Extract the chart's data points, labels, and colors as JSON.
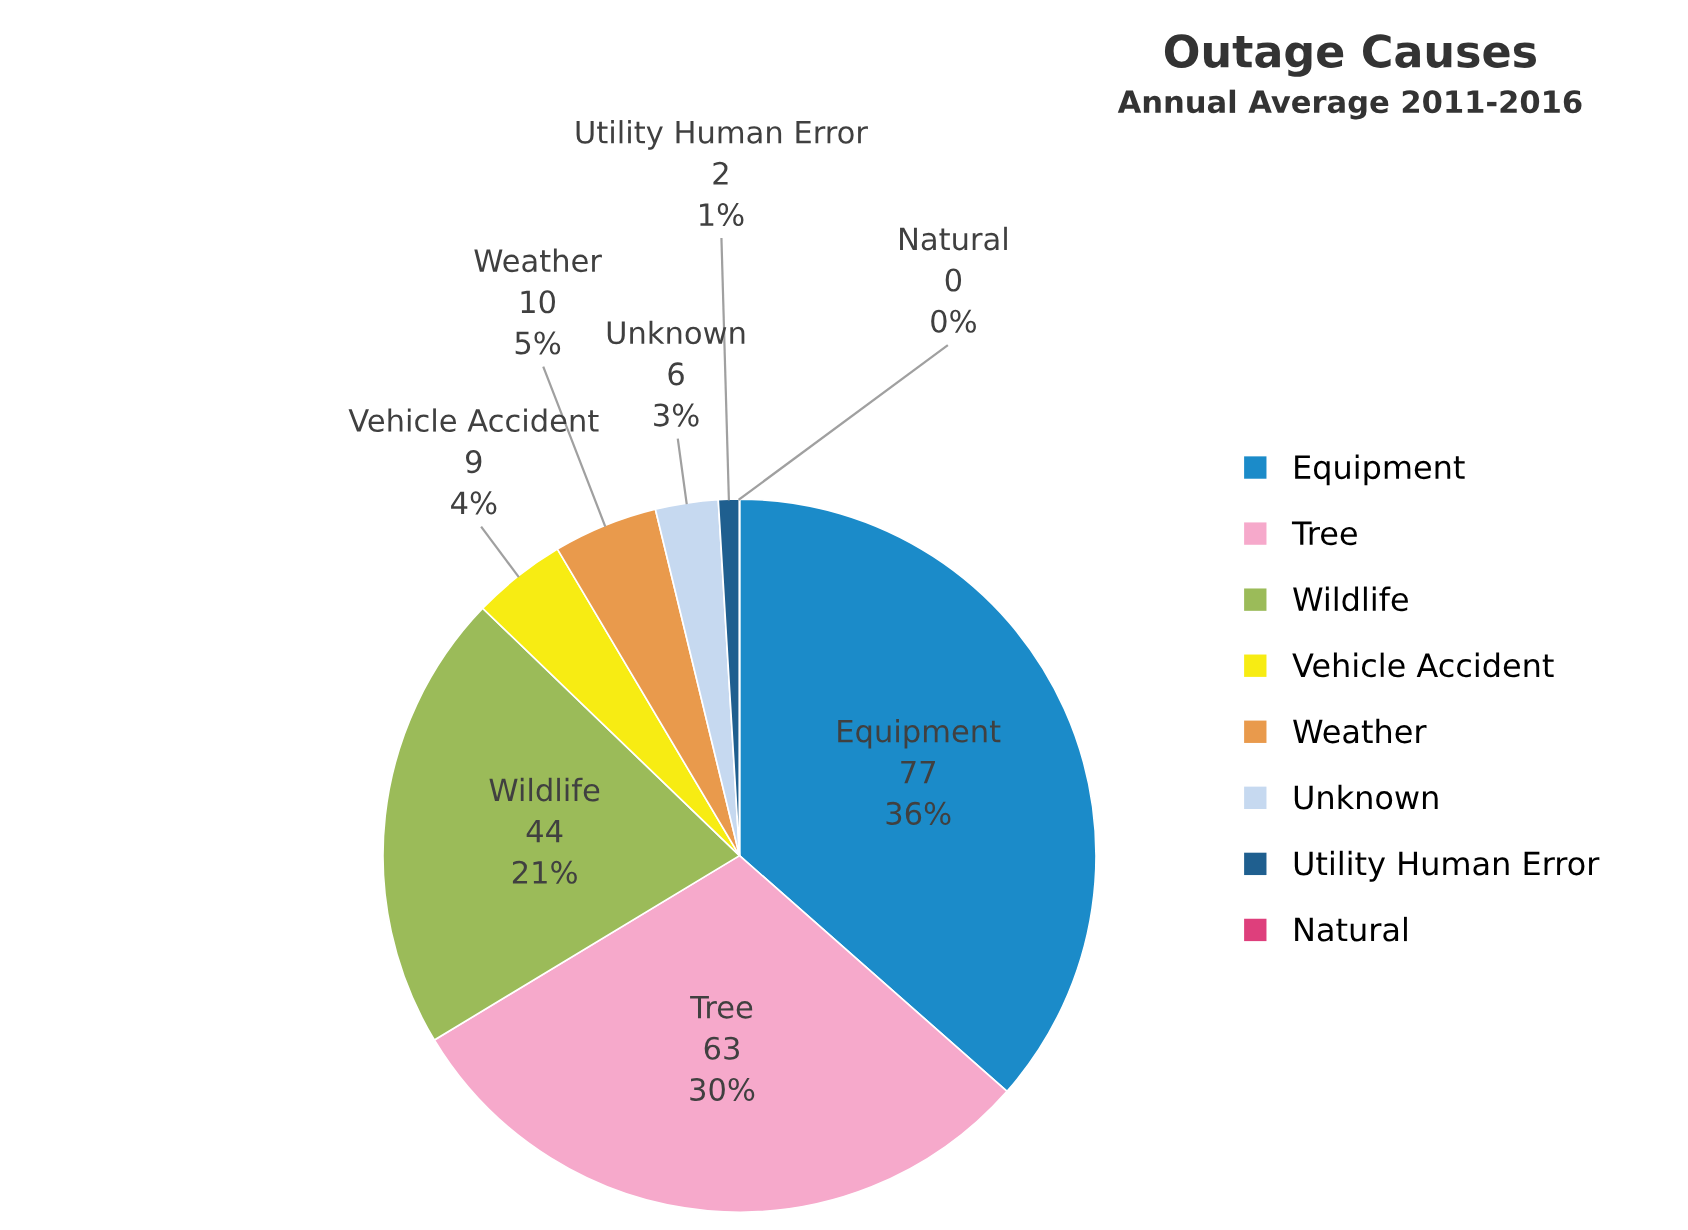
{
  "chart_data": {
    "type": "pie",
    "title": "Outage Causes",
    "subtitle": "Annual Average 2011-2016",
    "categories": [
      "Equipment",
      "Tree",
      "Wildlife",
      "Vehicle Accident",
      "Weather",
      "Unknown",
      "Utility Human Error",
      "Natural"
    ],
    "values": [
      77,
      63,
      44,
      9,
      10,
      6,
      2,
      0
    ],
    "value_labels": [
      "77\n36%",
      "63\n30%",
      "44\n21%",
      "9\n4%",
      "10\n5%",
      "6\n3%",
      "2\n1%",
      "0\n0%"
    ],
    "colors": [
      "#1b8bc9",
      "#f6a9cb",
      "#9bbb59",
      "#f7ec13",
      "#e99a4c",
      "#c6d9f0",
      "#1f5f8f",
      "#de3f7c"
    ],
    "legend": "right"
  }
}
